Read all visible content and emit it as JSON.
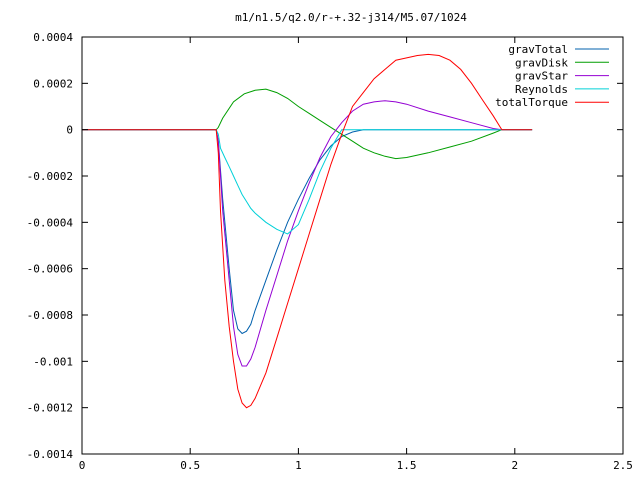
{
  "chart_data": {
    "type": "line",
    "title": "m1/n1.5/q2.0/r-+.32-j314/M5.07/1024",
    "xlim": [
      0,
      2.5
    ],
    "ylim": [
      -0.0014,
      0.0004
    ],
    "xticks": [
      0,
      0.5,
      1,
      1.5,
      2,
      2.5
    ],
    "xtick_labels": [
      "0",
      "0.5",
      "1",
      "1.5",
      "2",
      "2.5"
    ],
    "yticks": [
      0.0004,
      0.0002,
      0,
      -0.0002,
      -0.0004,
      -0.0006,
      -0.0008,
      -0.001,
      -0.0012,
      -0.0014
    ],
    "ytick_labels": [
      "0.0004",
      "0.0002",
      "0",
      "-0.0002",
      "-0.0004",
      "-0.0006",
      "-0.0008",
      "-0.001",
      "-0.0012",
      "-0.0014"
    ],
    "grid": false,
    "legend_position": "top-right",
    "series": [
      {
        "name": "gravTotal",
        "color": "#0060ad",
        "x": [
          0,
          0.62,
          0.63,
          0.65,
          0.68,
          0.7,
          0.72,
          0.74,
          0.76,
          0.78,
          0.8,
          0.85,
          0.9,
          0.95,
          1.0,
          1.05,
          1.1,
          1.15,
          1.2,
          1.25,
          1.3,
          1.4,
          1.5,
          1.6,
          1.7,
          1.8,
          1.9,
          1.94,
          2.0,
          2.08
        ],
        "y": [
          0,
          0,
          -5e-05,
          -0.0003,
          -0.0006,
          -0.00078,
          -0.00086,
          -0.00088,
          -0.00087,
          -0.00084,
          -0.00078,
          -0.00065,
          -0.00052,
          -0.0004,
          -0.0003,
          -0.00021,
          -0.00013,
          -7e-05,
          -3e-05,
          -1e-05,
          0,
          0,
          0,
          0,
          0,
          0,
          0,
          0,
          0,
          0
        ]
      },
      {
        "name": "gravDisk",
        "color": "#009e00",
        "x": [
          0,
          0.62,
          0.63,
          0.65,
          0.7,
          0.75,
          0.8,
          0.85,
          0.9,
          0.95,
          1.0,
          1.05,
          1.1,
          1.15,
          1.2,
          1.25,
          1.3,
          1.35,
          1.4,
          1.45,
          1.5,
          1.6,
          1.7,
          1.8,
          1.9,
          1.94,
          2.0,
          2.08
        ],
        "y": [
          0,
          0,
          1e-05,
          5e-05,
          0.00012,
          0.000155,
          0.00017,
          0.000175,
          0.00016,
          0.000135,
          0.0001,
          7e-05,
          4e-05,
          1e-05,
          -2e-05,
          -5e-05,
          -8e-05,
          -0.0001,
          -0.000115,
          -0.000125,
          -0.00012,
          -0.0001,
          -7.5e-05,
          -5e-05,
          -1.5e-05,
          0,
          0,
          0
        ]
      },
      {
        "name": "gravStar",
        "color": "#9400d3",
        "x": [
          0,
          0.62,
          0.63,
          0.65,
          0.68,
          0.7,
          0.72,
          0.74,
          0.76,
          0.78,
          0.8,
          0.85,
          0.9,
          0.95,
          1.0,
          1.05,
          1.1,
          1.15,
          1.2,
          1.25,
          1.3,
          1.35,
          1.4,
          1.45,
          1.5,
          1.6,
          1.7,
          1.8,
          1.9,
          1.94,
          2.0,
          2.08
        ],
        "y": [
          0,
          0,
          -5e-05,
          -0.00035,
          -0.00065,
          -0.00085,
          -0.00097,
          -0.00102,
          -0.00102,
          -0.00099,
          -0.00094,
          -0.00078,
          -0.00063,
          -0.00048,
          -0.00035,
          -0.00023,
          -0.00012,
          -3e-05,
          3e-05,
          8e-05,
          0.00011,
          0.00012,
          0.000125,
          0.00012,
          0.00011,
          8e-05,
          5.5e-05,
          3e-05,
          5e-06,
          0,
          0,
          0
        ]
      },
      {
        "name": "Reynolds",
        "color": "#00d0d8",
        "x": [
          0,
          0.62,
          0.63,
          0.64,
          0.66,
          0.68,
          0.7,
          0.72,
          0.74,
          0.76,
          0.78,
          0.8,
          0.85,
          0.9,
          0.95,
          1.0,
          1.05,
          1.1,
          1.15,
          1.2,
          1.25,
          1.3,
          1.4,
          1.5,
          1.6,
          1.7,
          1.8,
          1.9,
          1.94,
          2.0,
          2.08
        ],
        "y": [
          0,
          0,
          -2e-05,
          -8e-05,
          -0.00012,
          -0.00016,
          -0.0002,
          -0.00024,
          -0.00028,
          -0.00031,
          -0.00034,
          -0.00036,
          -0.0004,
          -0.00043,
          -0.00045,
          -0.00041,
          -0.0003,
          -0.00018,
          -8e-05,
          0,
          0,
          0,
          0,
          0,
          0,
          0,
          0,
          0,
          0,
          0,
          0
        ]
      },
      {
        "name": "totalTorque",
        "color": "#ff0000",
        "x": [
          0,
          0.62,
          0.63,
          0.64,
          0.66,
          0.68,
          0.7,
          0.72,
          0.74,
          0.76,
          0.78,
          0.8,
          0.85,
          0.9,
          0.95,
          1.0,
          1.05,
          1.1,
          1.15,
          1.2,
          1.25,
          1.3,
          1.35,
          1.4,
          1.45,
          1.5,
          1.55,
          1.6,
          1.65,
          1.7,
          1.75,
          1.8,
          1.85,
          1.9,
          1.94,
          2.0,
          2.08
        ],
        "y": [
          0,
          0,
          -0.0001,
          -0.00035,
          -0.00065,
          -0.00085,
          -0.001,
          -0.00112,
          -0.00118,
          -0.0012,
          -0.00119,
          -0.00116,
          -0.00105,
          -0.0009,
          -0.00075,
          -0.0006,
          -0.00045,
          -0.0003,
          -0.00015,
          -2e-05,
          0.0001,
          0.00016,
          0.00022,
          0.00026,
          0.0003,
          0.00031,
          0.00032,
          0.000325,
          0.00032,
          0.0003,
          0.00026,
          0.0002,
          0.00013,
          6e-05,
          0,
          0,
          0
        ]
      }
    ]
  }
}
